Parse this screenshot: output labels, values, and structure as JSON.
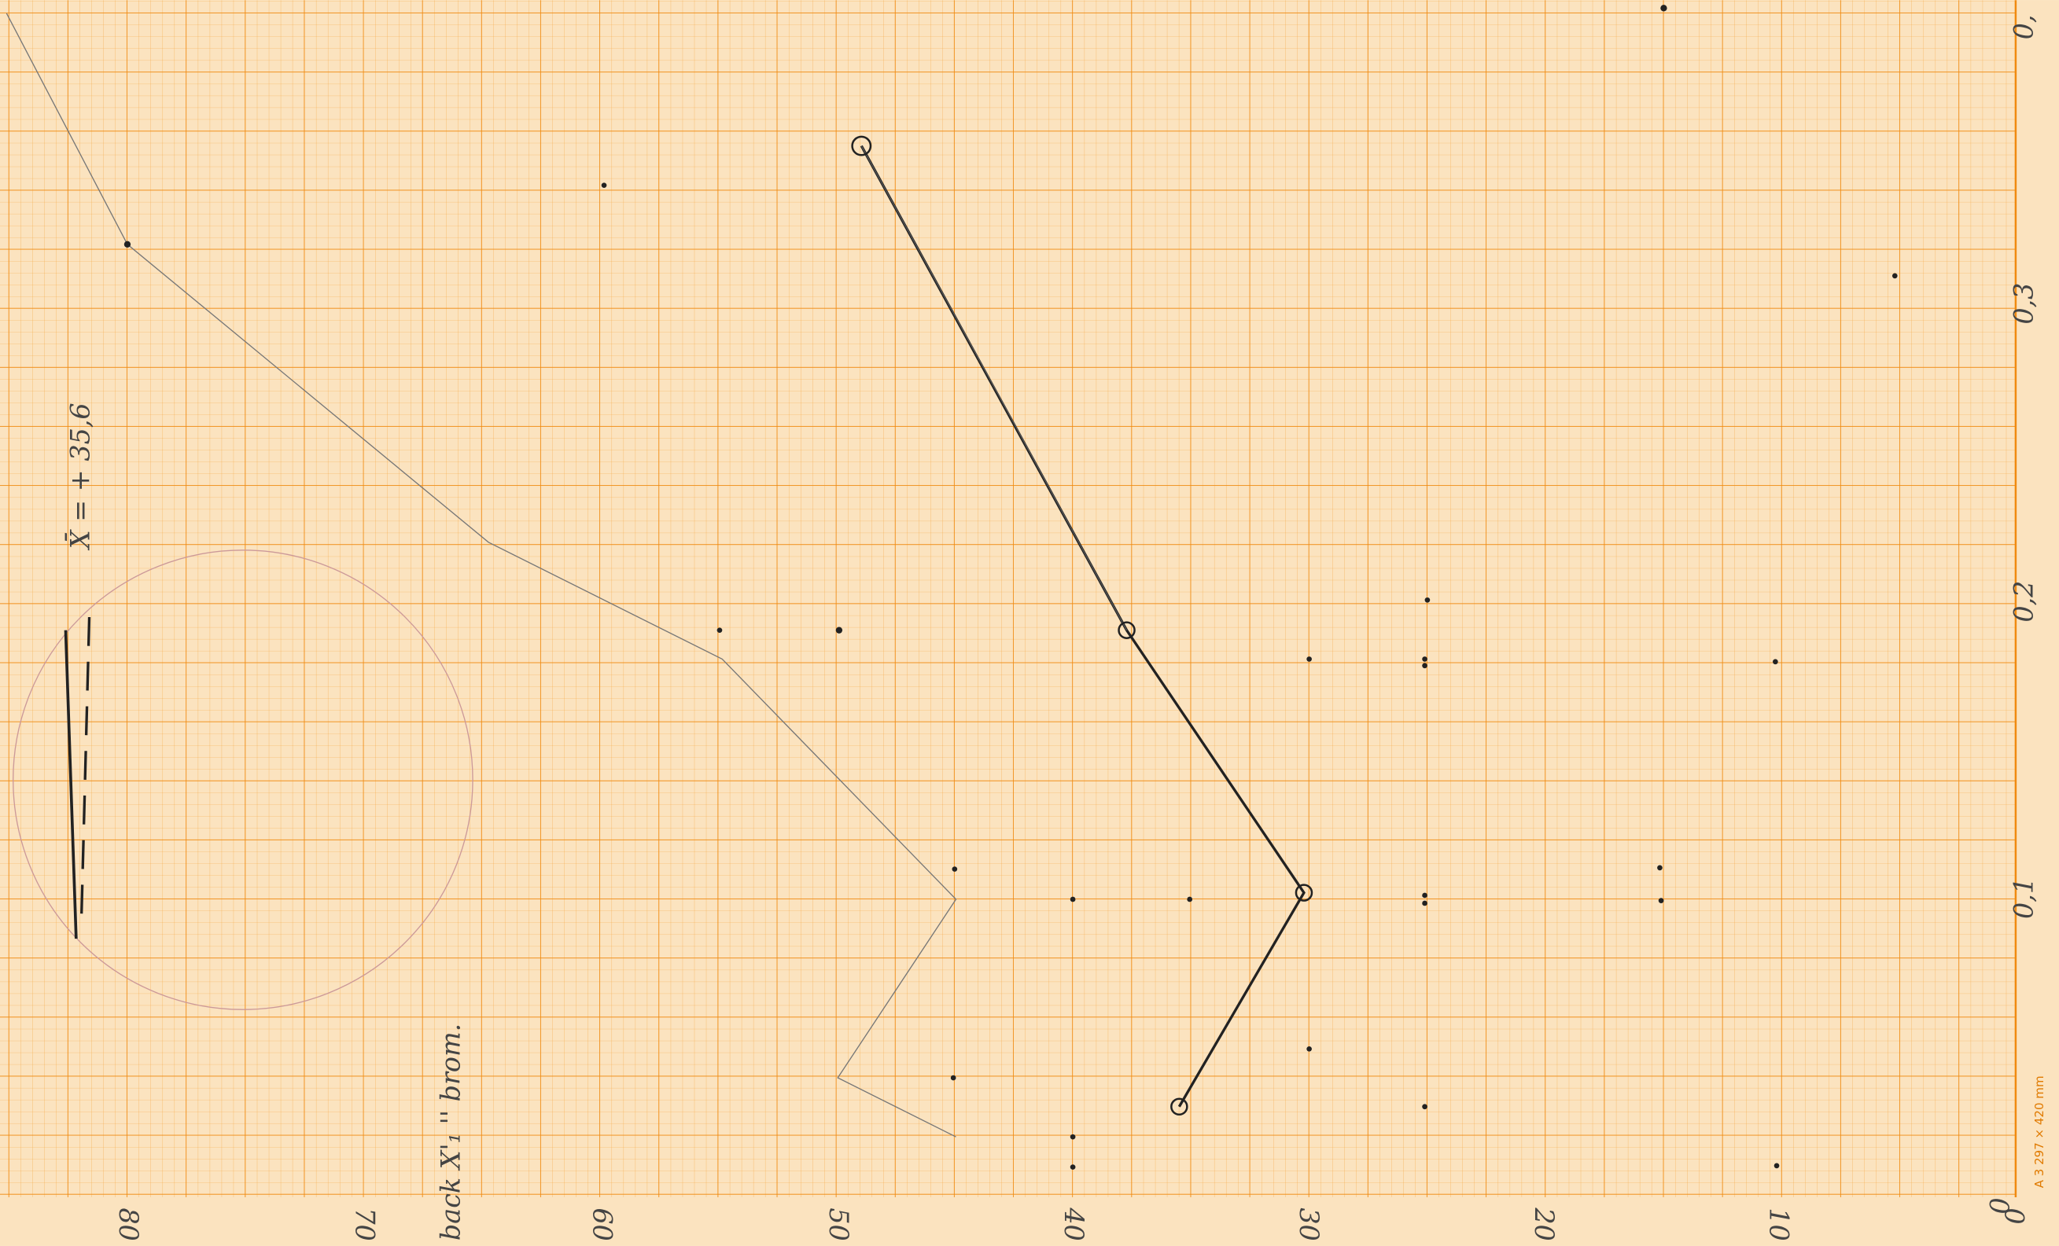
{
  "bottom_labels": [
    "80",
    "70",
    "60",
    "50",
    "40",
    "30",
    "20",
    "10",
    "0"
  ],
  "right_labels": [
    "0",
    "0,1",
    "0,2",
    "0,3",
    "0,"
  ],
  "annotations": {
    "mean": "X̄ = + 35,6",
    "note": "back X'₁ '' brom."
  },
  "paper_label": "A 3  297 × 420 mm"
}
